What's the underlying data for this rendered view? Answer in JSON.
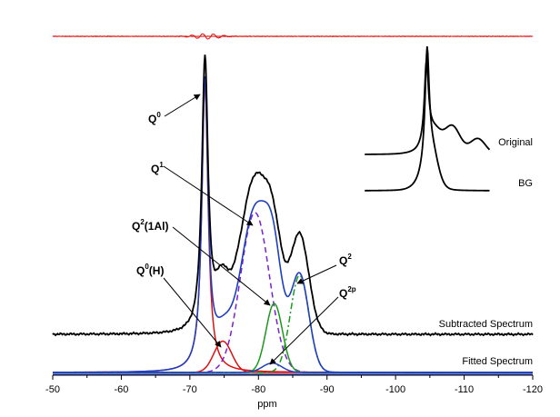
{
  "chart_data": {
    "type": "line",
    "xlabel": "ppm",
    "xlim": [
      -50,
      -120
    ],
    "x_ticks": [
      "-50",
      "-60",
      "-70",
      "-80",
      "-90",
      "-100",
      "-110",
      "-120"
    ],
    "y_axis_shown": false,
    "grid": false,
    "series": [
      {
        "name": "Subtracted Spectrum",
        "color": "#000000",
        "peaks": [
          {
            "x": -72.2,
            "height": 1.0
          },
          {
            "x": -79.8,
            "height": 0.54
          },
          {
            "x": -85.8,
            "height": 0.39
          },
          {
            "x": -74.6,
            "height": 0.16
          }
        ]
      },
      {
        "name": "Fitted Spectrum",
        "color": "#1f3fbf",
        "peaks": [
          {
            "x": -72.2,
            "height": 0.96
          },
          {
            "x": -79.8,
            "height": 0.58
          },
          {
            "x": -85.4,
            "height": 0.34
          }
        ]
      },
      {
        "name": "Q0",
        "color": "#dd1111",
        "peak_x": -72.2,
        "height": 0.93
      },
      {
        "name": "Q0(H)",
        "color": "#dd1111",
        "peak_x": -74.8,
        "height": 0.1
      },
      {
        "name": "Q1",
        "color": "#7a1fd4",
        "line": "dashed",
        "peak_x": -79.5,
        "height": 0.51
      },
      {
        "name": "Q2(1Al)",
        "color": "#1a9a1a",
        "peak_x": -82.3,
        "height": 0.22
      },
      {
        "name": "Q2",
        "color": "#1a9a1a",
        "line": "dash-dot",
        "peak_x": -86.0,
        "height": 0.31
      },
      {
        "name": "Q2p",
        "color": "#1f3fbf",
        "peak_x": -82.0,
        "height": 0.03
      },
      {
        "name": "Residual",
        "color": "#dd1111"
      }
    ],
    "inset": {
      "series": [
        {
          "name": "Original",
          "peaks": [
            {
              "x": -104.5,
              "height": 1.0
            },
            {
              "x": -108.3,
              "height": 0.29
            },
            {
              "x": -112.0,
              "height": 0.19
            }
          ]
        },
        {
          "name": "BG",
          "peaks": [
            {
              "x": -104.6,
              "height": 1.0
            }
          ]
        }
      ]
    }
  },
  "labels": {
    "q0": "Q",
    "q0_sup": "0",
    "q1": "Q",
    "q1_sup": "1",
    "q2al_a": "Q",
    "q2al_sup": "2",
    "q2al_b": "(1Al)",
    "q0h_a": "Q",
    "q0h_sup": "0",
    "q0h_b": "(H)",
    "q2": "Q",
    "q2_sup": "2",
    "q2p": "Q",
    "q2p_sup": "2p",
    "subtracted": "Subtracted Spectrum",
    "fitted": "Fitted Spectrum",
    "original": "Original",
    "bg": "BG"
  }
}
